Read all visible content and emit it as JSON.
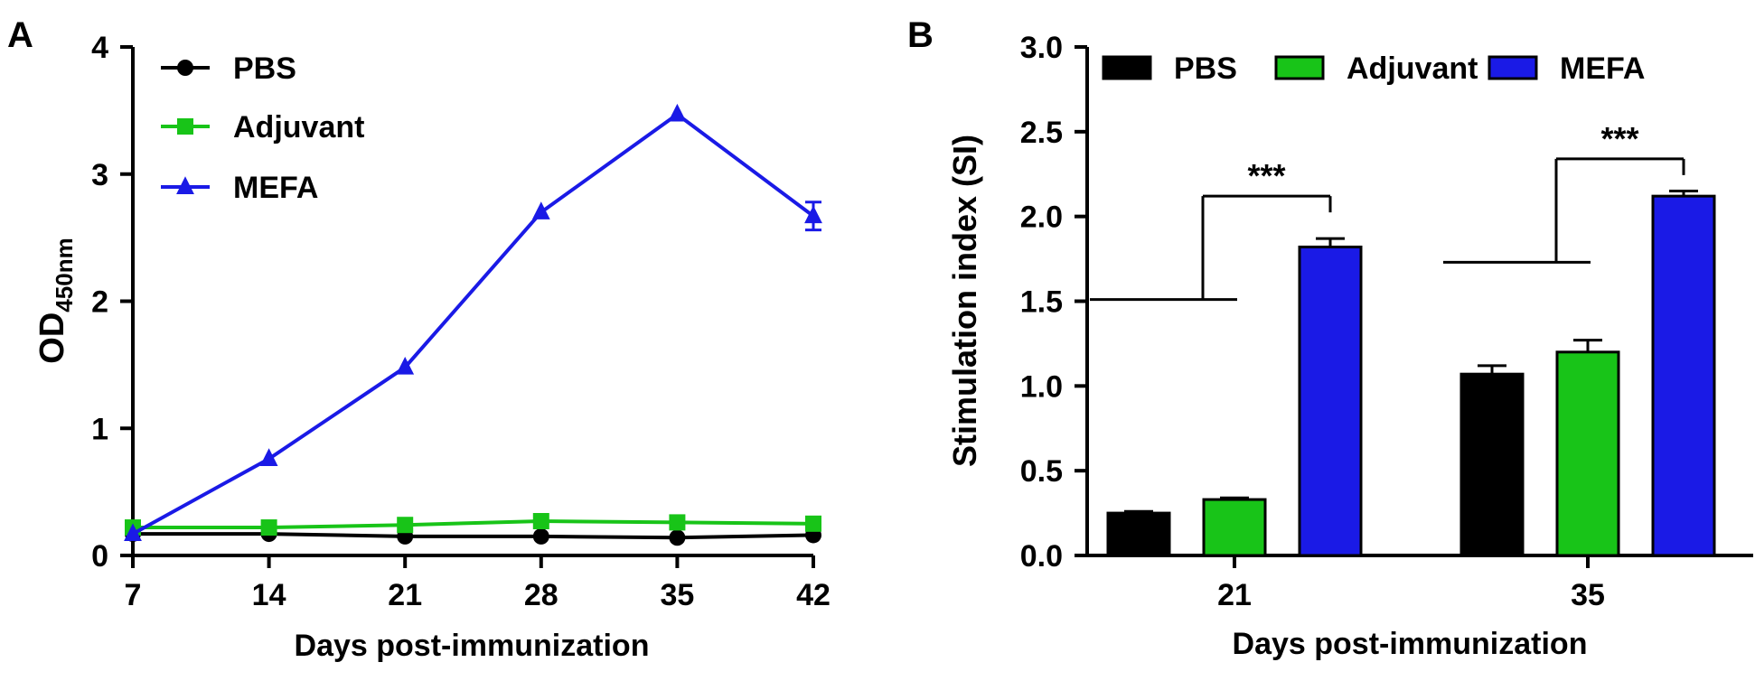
{
  "chart_data": [
    {
      "panel_label": "A",
      "type": "line",
      "title": "",
      "xlabel": "Days post-immunization",
      "ylabel_main": "OD",
      "ylabel_sub": "450nm",
      "x": [
        7,
        14,
        21,
        28,
        35,
        42
      ],
      "xticks": [
        "7",
        "14",
        "21",
        "28",
        "35",
        "42"
      ],
      "xlim": [
        7,
        42
      ],
      "ylim": [
        0,
        4
      ],
      "yticks": [
        "0",
        "1",
        "2",
        "3",
        "4"
      ],
      "grid": false,
      "legend_position": "top-left",
      "series": [
        {
          "name": "PBS",
          "marker": "circle",
          "color": "#000000",
          "values": [
            0.17,
            0.17,
            0.15,
            0.15,
            0.14,
            0.16
          ],
          "errors": [
            0.01,
            0.01,
            0.01,
            0.01,
            0.01,
            0.01
          ]
        },
        {
          "name": "Adjuvant",
          "marker": "square",
          "color": "#18c418",
          "values": [
            0.22,
            0.22,
            0.24,
            0.27,
            0.26,
            0.25
          ],
          "errors": [
            0.01,
            0.01,
            0.01,
            0.01,
            0.01,
            0.01
          ]
        },
        {
          "name": "MEFA",
          "marker": "triangle",
          "color": "#1a1ae6",
          "values": [
            0.17,
            0.76,
            1.48,
            2.7,
            3.47,
            2.67
          ],
          "errors": [
            0.01,
            0.02,
            0.02,
            0.02,
            0.02,
            0.11
          ]
        }
      ]
    },
    {
      "panel_label": "B",
      "type": "bar",
      "title": "",
      "xlabel": "Days post-immunization",
      "ylabel": "Stimulation index (SI)",
      "categories": [
        "21",
        "35"
      ],
      "ylim": [
        0,
        3.0
      ],
      "yticks": [
        "0.0",
        "0.5",
        "1.0",
        "1.5",
        "2.0",
        "2.5",
        "3.0"
      ],
      "grid": false,
      "legend_position": "top",
      "series": [
        {
          "name": "PBS",
          "color": "#000000",
          "values": [
            0.25,
            1.07
          ],
          "errors": [
            0.01,
            0.05
          ]
        },
        {
          "name": "Adjuvant",
          "color": "#18c418",
          "values": [
            0.33,
            1.2
          ],
          "errors": [
            0.01,
            0.07
          ]
        },
        {
          "name": "MEFA",
          "color": "#1a1ae6",
          "values": [
            1.82,
            2.12
          ],
          "errors": [
            0.05,
            0.03
          ]
        }
      ],
      "annotations": [
        {
          "category": "21",
          "text": "***",
          "bracket_low": 1.51,
          "bracket_high": 2.12
        },
        {
          "category": "35",
          "text": "***",
          "bracket_low": 1.73,
          "bracket_high": 2.34
        }
      ]
    }
  ]
}
